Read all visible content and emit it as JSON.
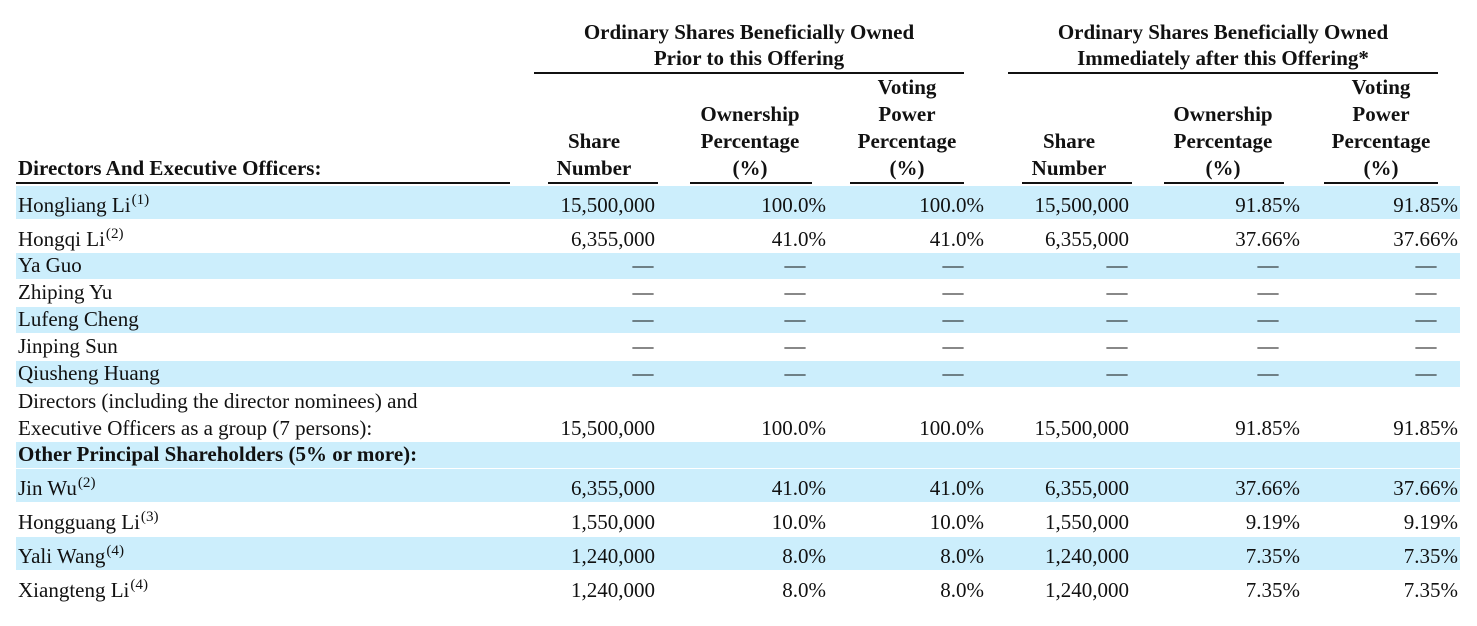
{
  "groups": {
    "prior": {
      "line1": "Ordinary Shares Beneficially Owned",
      "line2": "Prior to this Offering"
    },
    "after": {
      "line1": "Ordinary Shares Beneficially Owned",
      "line2": "Immediately after this Offering*"
    }
  },
  "columns": {
    "name_header": "Directors And Executive Officers:",
    "share": [
      "Share",
      "Number"
    ],
    "ownership": [
      "Ownership",
      "Percentage",
      "(%)"
    ],
    "voting": [
      "Voting",
      "Power",
      "Percentage",
      "(%)"
    ]
  },
  "rows": [
    {
      "name": "Hongliang Li",
      "note": "(1)",
      "v": [
        "15,500,000",
        "100.0%",
        "100.0%",
        "15,500,000",
        "91.85%",
        "91.85%"
      ]
    },
    {
      "name": "Hongqi Li",
      "note": "(2)",
      "v": [
        "6,355,000",
        "41.0%",
        "41.0%",
        "6,355,000",
        "37.66%",
        "37.66%"
      ]
    },
    {
      "name": "Ya Guo",
      "note": "",
      "v": [
        "—",
        "—",
        "—",
        "—",
        "—",
        "—"
      ]
    },
    {
      "name": "Zhiping Yu",
      "note": "",
      "v": [
        "—",
        "—",
        "—",
        "—",
        "—",
        "—"
      ]
    },
    {
      "name": "Lufeng Cheng",
      "note": "",
      "v": [
        "—",
        "—",
        "—",
        "—",
        "—",
        "—"
      ]
    },
    {
      "name": "Jinping Sun",
      "note": "",
      "v": [
        "—",
        "—",
        "—",
        "—",
        "—",
        "—"
      ]
    },
    {
      "name": "Qiusheng Huang",
      "note": "",
      "v": [
        "—",
        "—",
        "—",
        "—",
        "—",
        "—"
      ]
    },
    {
      "name_line1": "Directors (including the director nominees) and",
      "name_line2": "Executive Officers as a group (7 persons):",
      "v": [
        "15,500,000",
        "100.0%",
        "100.0%",
        "15,500,000",
        "91.85%",
        "91.85%"
      ]
    },
    {
      "section": "Other Principal Shareholders (5% or more):"
    },
    {
      "name": "Jin Wu",
      "note": "(2)",
      "v": [
        "6,355,000",
        "41.0%",
        "41.0%",
        "6,355,000",
        "37.66%",
        "37.66%"
      ]
    },
    {
      "name": "Hongguang Li",
      "note": "(3)",
      "v": [
        "1,550,000",
        "10.0%",
        "10.0%",
        "1,550,000",
        "9.19%",
        "9.19%"
      ]
    },
    {
      "name": "Yali Wang",
      "note": "(4)",
      "v": [
        "1,240,000",
        "8.0%",
        "8.0%",
        "1,240,000",
        "7.35%",
        "7.35%"
      ]
    },
    {
      "name": "Xiangteng Li",
      "note": "(4)",
      "v": [
        "1,240,000",
        "8.0%",
        "8.0%",
        "1,240,000",
        "7.35%",
        "7.35%"
      ]
    }
  ]
}
